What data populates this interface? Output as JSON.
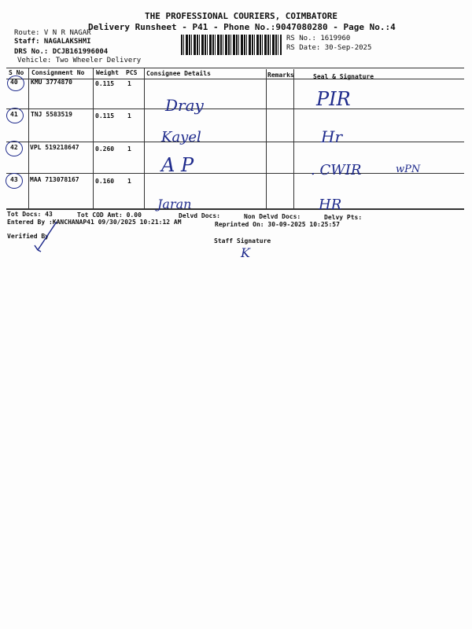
{
  "header": {
    "company": "THE PROFESSIONAL COURIERS, COIMBATORE",
    "runsheet_title": "Delivery Runsheet - P41 - Phone No.:9047080280 - Page No.:4",
    "route": "Route: V N R NAGAR",
    "staff": "Staff: NAGALAKSHMI",
    "drs_no": "DRS No.: DCJB161996004",
    "vehicle": "Vehicle: Two Wheeler Delivery",
    "rs_no": "RS No.: 1619960",
    "rs_date": "RS Date: 30-Sep-2025"
  },
  "table": {
    "columns": [
      "S No",
      "Consignment No",
      "Weight",
      "PCS",
      "Consignee Details",
      "Remarks",
      "Seal & Signature"
    ],
    "rows": [
      {
        "sno": "40",
        "consignment": "KMU 3774870",
        "weight": "0.115",
        "pcs": "1",
        "consignee_hand": "Dray",
        "seal_hand": "PIR",
        "seal_hand2": ""
      },
      {
        "sno": "41",
        "consignment": "TNJ 5583519",
        "weight": "0.115",
        "pcs": "1",
        "consignee_hand": "Kayel",
        "seal_hand": "Hr",
        "seal_hand2": ""
      },
      {
        "sno": "42",
        "consignment": "VPL 519218647",
        "weight": "0.260",
        "pcs": "1",
        "consignee_hand": "A P",
        "seal_hand": ". CWIR",
        "seal_hand2": "wPN"
      },
      {
        "sno": "43",
        "consignment": "MAA 713078167",
        "weight": "0.160",
        "pcs": "1",
        "consignee_hand": "Jaran",
        "seal_hand": "HR",
        "seal_hand2": ""
      }
    ]
  },
  "footer": {
    "tot_docs": "Tot Docs:  43",
    "tot_cod": "Tot COD Amt:    0.00",
    "delvd_docs": "Delvd Docs:",
    "non_delvd_docs": "Non Delvd Docs:",
    "delvy_pts": "Delvy Pts:",
    "entered_by": "Entered By :KANCHANAP41 09/30/2025 10:21:12 AM",
    "reprinted_on": "Reprinted On: 30-09-2025 10:25:57",
    "verified_by": "Verified By",
    "staff_signature": "Staff Signature",
    "staff_signature_hand": "K"
  },
  "colors": {
    "ink": "#1f2b8c",
    "print": "#111111"
  }
}
